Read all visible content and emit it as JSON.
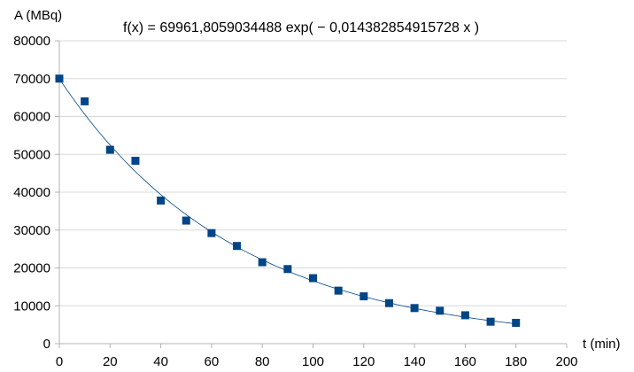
{
  "chart_data": {
    "type": "scatter",
    "title": "",
    "annotation": "f(x) = 69961,8059034488 exp( − 0,014382854915728 x )",
    "ylabel": "A (MBq)",
    "xlabel": "t (min)",
    "xlim": [
      0,
      200
    ],
    "ylim": [
      0,
      80000
    ],
    "xticks": [
      "0",
      "20",
      "40",
      "60",
      "80",
      "100",
      "120",
      "140",
      "160",
      "180",
      "200"
    ],
    "yticks": [
      "0",
      "10000",
      "20000",
      "30000",
      "40000",
      "50000",
      "60000",
      "70000",
      "80000"
    ],
    "grid": "horizontal",
    "legend": "none",
    "point_color": "#004586",
    "trendline": {
      "type": "exponential",
      "a": 69961.8059034488,
      "b": -0.014382854915728,
      "color": "#004586"
    },
    "series": [
      {
        "points": [
          [
            0,
            70000
          ],
          [
            10,
            64000
          ],
          [
            20,
            51200
          ],
          [
            30,
            48300
          ],
          [
            40,
            37800
          ],
          [
            50,
            32500
          ],
          [
            60,
            29200
          ],
          [
            70,
            25800
          ],
          [
            80,
            21500
          ],
          [
            90,
            19700
          ],
          [
            100,
            17300
          ],
          [
            110,
            14000
          ],
          [
            120,
            12500
          ],
          [
            130,
            10700
          ],
          [
            140,
            9400
          ],
          [
            150,
            8700
          ],
          [
            160,
            7500
          ],
          [
            170,
            5800
          ],
          [
            180,
            5500
          ]
        ]
      }
    ]
  }
}
